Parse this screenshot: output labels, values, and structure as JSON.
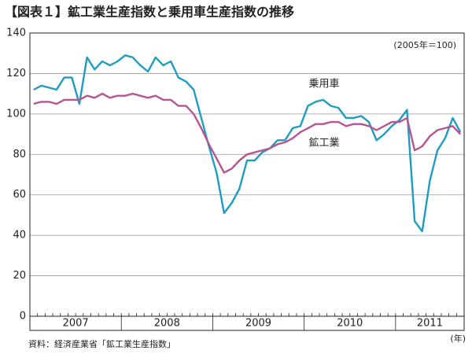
{
  "chart_data": {
    "type": "line",
    "title": "【図表１】鉱工業生産指数と乗用車生産指数の推移",
    "annotation": "(2005年＝100)",
    "x_unit": "(年)",
    "source": "資料：経済産業省「鉱工業生産指数」",
    "categories": [
      "2007",
      null,
      null,
      null,
      null,
      null,
      null,
      null,
      null,
      null,
      null,
      null,
      "2008",
      null,
      null,
      null,
      null,
      null,
      null,
      null,
      null,
      null,
      null,
      null,
      "2009",
      null,
      null,
      null,
      null,
      null,
      null,
      null,
      null,
      null,
      null,
      null,
      "2010",
      null,
      null,
      null,
      null,
      null,
      null,
      null,
      null,
      null,
      null,
      null,
      "2011",
      null,
      null,
      null,
      null,
      null,
      null,
      null,
      null
    ],
    "ylim": [
      0,
      140
    ],
    "yticks": [
      0,
      20,
      40,
      60,
      80,
      100,
      120,
      140
    ],
    "grid": true,
    "series": [
      {
        "name": "乗用車",
        "color": "#1e9cc2",
        "values": [
          112,
          114,
          113,
          112,
          118,
          118,
          105,
          128,
          122,
          126,
          124,
          126,
          129,
          128,
          124,
          121,
          128,
          124,
          126,
          118,
          116,
          112,
          98,
          84,
          71,
          51,
          56,
          63,
          77,
          77,
          81,
          83,
          87,
          87,
          93,
          94,
          104,
          106,
          107,
          104,
          103,
          98,
          98,
          99,
          96,
          87,
          90,
          94,
          97,
          102,
          47,
          42,
          67,
          82,
          88,
          98,
          91
        ]
      },
      {
        "name": "鉱工業",
        "color": "#b8548f",
        "values": [
          105,
          106,
          106,
          105,
          107,
          107,
          107,
          109,
          108,
          110,
          108,
          109,
          109,
          110,
          109,
          108,
          109,
          107,
          107,
          104,
          104,
          100,
          93,
          85,
          78,
          71,
          73,
          77,
          80,
          81,
          82,
          83,
          85,
          86,
          88,
          91,
          93,
          95,
          95,
          96,
          96,
          94,
          95,
          95,
          94,
          92,
          94,
          96,
          96,
          98,
          82,
          84,
          89,
          92,
          93,
          94,
          90
        ]
      }
    ]
  }
}
